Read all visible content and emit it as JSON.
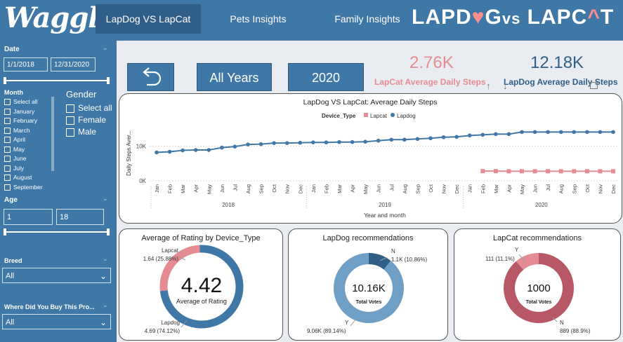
{
  "header": {
    "brand": "Waggle",
    "tabs": [
      {
        "label": "LapDog VS LapCat",
        "active": true
      },
      {
        "label": "Pets Insights",
        "active": false
      },
      {
        "label": "Family Insights",
        "active": false
      }
    ],
    "title_part1": "LAPD",
    "title_heart": "♥",
    "title_part2": "G",
    "title_vs": "vs",
    "title_part3": "LAPC",
    "title_cat_icon": "^",
    "title_part4": "T"
  },
  "sidebar": {
    "date_label": "Date",
    "date_start": "1/1/2018",
    "date_end": "12/31/2020",
    "month_label": "Month",
    "months": [
      "Select all",
      "January",
      "February",
      "March",
      "April",
      "May",
      "June",
      "July",
      "August",
      "September"
    ],
    "gender_label": "Gender",
    "genders": [
      "Select all",
      "Female",
      "Male"
    ],
    "age_label": "Age",
    "age_min": "1",
    "age_max": "18",
    "breed_label": "Breed",
    "breed_value": "All",
    "bought_label": "Where Did You Buy This Pro...",
    "bought_value": "All"
  },
  "controls": {
    "back_icon": "back-arrow-icon",
    "all_years_label": "All Years",
    "year_label": "2020"
  },
  "kpis": {
    "lapcat_value": "2.76K",
    "lapcat_label": "LapCat Average Daily Steps",
    "lapdog_value": "12.18K",
    "lapdog_label": "LapDog Average Daily Steps"
  },
  "colors": {
    "brand_blue": "#3f77a6",
    "lapdog": "#3f77a6",
    "lapcat": "#e58b93",
    "lapdog_light": "#6f9fc4",
    "lapcat_dark": "#b85866"
  },
  "steps_chart": {
    "title": "LapDog VS LapCat: Average Daily Steps",
    "legend_title": "Device_Type",
    "legend": [
      "Lapcat",
      "Lapdog"
    ],
    "ylabel": "Daily Steps Aver...",
    "xlabel": "Year and month",
    "yticks": [
      "10K",
      "0K"
    ],
    "month_ticks": [
      "Jan",
      "Feb",
      "Mar",
      "Apr",
      "May",
      "Jun",
      "Jul",
      "Aug",
      "Sep",
      "Oct",
      "Nov",
      "Dec",
      "Jan",
      "Feb",
      "Mar",
      "Apr",
      "May",
      "Jun",
      "Jul",
      "Aug",
      "Sep",
      "Oct",
      "Nov",
      "Dec",
      "Jan",
      "Feb",
      "Mar",
      "Apr",
      "May",
      "Jun",
      "Jul",
      "Aug",
      "Sep",
      "Oct",
      "Nov",
      "Dec"
    ],
    "years": [
      "2018",
      "2019",
      "2020"
    ]
  },
  "rating_card": {
    "title": "Average of Rating by Device_Type",
    "center_value": "4.42",
    "center_label": "Average of Rating",
    "lapcat_label": "Lapcat",
    "lapcat_value": "1.64 (25.88%)",
    "lapdog_label": "Lapdog",
    "lapdog_value": "4.69 (74.12%)"
  },
  "lapdog_reco": {
    "title": "LapDog recommendations",
    "center_value": "10.16K",
    "center_label": "Total Votes",
    "n_label": "N",
    "n_value": "1.1K (10.86%)",
    "y_label": "Y",
    "y_value": "9.06K (89.14%)"
  },
  "lapcat_reco": {
    "title": "LapCat recommendations",
    "center_value": "1000",
    "center_label": "Total Votes",
    "y_label": "Y",
    "y_value": "111 (11.1%)",
    "n_label": "N",
    "n_value": "889 (88.9%)"
  },
  "chart_data": [
    {
      "type": "line",
      "title": "LapDog VS LapCat: Average Daily Steps",
      "xlabel": "Year and month",
      "ylabel": "Daily Steps Aver...",
      "ylim": [
        0,
        16000
      ],
      "x": [
        "2018-01",
        "2018-02",
        "2018-03",
        "2018-04",
        "2018-05",
        "2018-06",
        "2018-07",
        "2018-08",
        "2018-09",
        "2018-10",
        "2018-11",
        "2018-12",
        "2019-01",
        "2019-02",
        "2019-03",
        "2019-04",
        "2019-05",
        "2019-06",
        "2019-07",
        "2019-08",
        "2019-09",
        "2019-10",
        "2019-11",
        "2019-12",
        "2020-01",
        "2020-02",
        "2020-03",
        "2020-04",
        "2020-05",
        "2020-06",
        "2020-07",
        "2020-08",
        "2020-09",
        "2020-10",
        "2020-11",
        "2020-12"
      ],
      "series": [
        {
          "name": "Lapdog",
          "values": [
            8200,
            8400,
            8800,
            8900,
            8900,
            9600,
            9900,
            10500,
            10600,
            10900,
            10900,
            11000,
            11100,
            11100,
            11200,
            11200,
            11300,
            11600,
            11900,
            11900,
            12100,
            12300,
            12600,
            12700,
            13100,
            13300,
            13500,
            13500,
            14100,
            14100,
            14100,
            14100,
            14100,
            14100,
            14100,
            14100
          ]
        },
        {
          "name": "Lapcat",
          "values": [
            null,
            null,
            null,
            null,
            null,
            null,
            null,
            null,
            null,
            null,
            null,
            null,
            null,
            null,
            null,
            null,
            null,
            null,
            null,
            null,
            null,
            null,
            null,
            null,
            null,
            2800,
            2800,
            2760,
            2760,
            2760,
            2760,
            2760,
            2760,
            2760,
            2760,
            2760
          ]
        }
      ],
      "legend": "top-left"
    },
    {
      "type": "pie",
      "title": "Average of Rating by Device_Type",
      "categories": [
        "Lapdog",
        "Lapcat"
      ],
      "values": [
        4.69,
        1.64
      ]
    },
    {
      "type": "pie",
      "title": "LapDog recommendations",
      "categories": [
        "Y",
        "N"
      ],
      "values": [
        9060,
        1100
      ]
    },
    {
      "type": "pie",
      "title": "LapCat recommendations",
      "categories": [
        "N",
        "Y"
      ],
      "values": [
        889,
        111
      ]
    }
  ]
}
